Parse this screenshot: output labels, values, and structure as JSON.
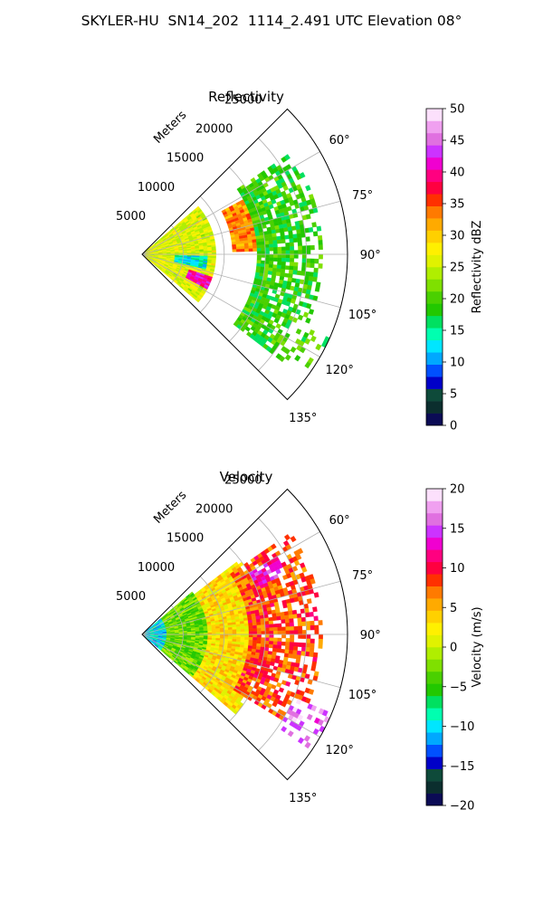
{
  "figure": {
    "title": "SKYLER-HU  SN14_202  1114_2.491 UTC Elevation 08°"
  },
  "chart_data": [
    {
      "type": "heatmap",
      "title": "Reflectivity",
      "radial_axis_label": "Meters",
      "radial_range": [
        0,
        25000
      ],
      "radial_ticks": [
        5000,
        10000,
        15000,
        20000,
        25000
      ],
      "radial_tick_labels": [
        "5000",
        "10000",
        "15000",
        "20000",
        "25000"
      ],
      "azimuth_range_deg": [
        45,
        135
      ],
      "azimuth_ticks_deg": [
        60,
        75,
        90,
        105,
        120,
        135
      ],
      "azimuth_tick_labels": [
        "60°",
        "75°",
        "90°",
        "105°",
        "120°",
        "135°"
      ],
      "grid": true,
      "colorbar": {
        "label": "Reflectivity dBZ",
        "range": [
          0,
          50
        ],
        "ticks": [
          0,
          5,
          10,
          15,
          20,
          25,
          30,
          35,
          40,
          45,
          50
        ],
        "tick_labels": [
          "0",
          "5",
          "10",
          "15",
          "20",
          "25",
          "30",
          "35",
          "40",
          "45",
          "50"
        ],
        "colors": [
          "#0b0b55",
          "#0b2e2e",
          "#0e4a3a",
          "#0000c8",
          "#0050ff",
          "#00a8ff",
          "#00e6ff",
          "#00ffb0",
          "#00e060",
          "#22c800",
          "#4ad000",
          "#7fe000",
          "#b0ee00",
          "#e0f200",
          "#fff000",
          "#ffd000",
          "#ffaa00",
          "#ff7a00",
          "#ff3000",
          "#ff0040",
          "#ff0080",
          "#f000d0",
          "#cc33ff",
          "#e070e0",
          "#f0a0f0",
          "#fce0fc"
        ]
      },
      "features": [
        {
          "name": "near-range echo",
          "range_m": [
            0,
            9000
          ],
          "azimuth_deg": [
            50,
            130
          ],
          "value": 26
        },
        {
          "name": "high reflectivity band",
          "range_m": [
            11000,
            16000
          ],
          "azimuth_deg": [
            62,
            88
          ],
          "value": 33
        },
        {
          "name": "outer echo",
          "range_m": [
            14000,
            22000
          ],
          "azimuth_deg": [
            55,
            128
          ],
          "value": 19
        },
        {
          "name": "low reflectivity pocket",
          "range_m": [
            4000,
            8000
          ],
          "azimuth_deg": [
            92,
            104
          ],
          "value": 13
        },
        {
          "name": "core",
          "range_m": [
            6000,
            9000
          ],
          "azimuth_deg": [
            108,
            118
          ],
          "value": 41
        },
        {
          "name": "distant cells",
          "range_m": [
            20000,
            26000
          ],
          "azimuth_deg": [
            112,
            124
          ],
          "value": 20
        }
      ]
    },
    {
      "type": "heatmap",
      "title": "Velocity",
      "radial_axis_label": "Meters",
      "radial_range": [
        0,
        25000
      ],
      "radial_ticks": [
        5000,
        10000,
        15000,
        20000,
        25000
      ],
      "radial_tick_labels": [
        "5000",
        "10000",
        "15000",
        "20000",
        "25000"
      ],
      "azimuth_range_deg": [
        45,
        135
      ],
      "azimuth_ticks_deg": [
        60,
        75,
        90,
        105,
        120,
        135
      ],
      "azimuth_tick_labels": [
        "60°",
        "75°",
        "90°",
        "105°",
        "120°",
        "135°"
      ],
      "grid": true,
      "colorbar": {
        "label": "Velocity (m/s)",
        "range": [
          -20,
          20
        ],
        "ticks": [
          -20,
          -15,
          -10,
          -5,
          0,
          5,
          10,
          15,
          20
        ],
        "tick_labels": [
          "−20",
          "−15",
          "−10",
          "−5",
          "0",
          "5",
          "10",
          "15",
          "20"
        ],
        "colors": [
          "#0b0b55",
          "#0b2e2e",
          "#0e4a3a",
          "#0000c8",
          "#0050ff",
          "#00a8ff",
          "#00e6ff",
          "#00ffb0",
          "#00e060",
          "#22c800",
          "#4ad000",
          "#7fe000",
          "#b0ee00",
          "#e0f200",
          "#fff000",
          "#ffd000",
          "#ffaa00",
          "#ff7a00",
          "#ff3000",
          "#ff0040",
          "#ff0080",
          "#f000d0",
          "#cc33ff",
          "#e070e0",
          "#f0a0f0",
          "#fce0fc"
        ]
      },
      "features": [
        {
          "name": "near-range inbound",
          "range_m": [
            0,
            3000
          ],
          "azimuth_deg": [
            50,
            130
          ],
          "value": -10
        },
        {
          "name": "transition",
          "range_m": [
            3000,
            8000
          ],
          "azimuth_deg": [
            50,
            130
          ],
          "value": -3
        },
        {
          "name": "mid range",
          "range_m": [
            8000,
            15000
          ],
          "azimuth_deg": [
            52,
            130
          ],
          "value": 3
        },
        {
          "name": "outbound band",
          "range_m": [
            13000,
            22000
          ],
          "azimuth_deg": [
            55,
            122
          ],
          "value": 8
        },
        {
          "name": "outbound maximum",
          "range_m": [
            15000,
            19000
          ],
          "azimuth_deg": [
            60,
            68
          ],
          "value": 13
        },
        {
          "name": "distant cells",
          "range_m": [
            20000,
            26000
          ],
          "azimuth_deg": [
            112,
            124
          ],
          "value": 16
        }
      ]
    }
  ]
}
